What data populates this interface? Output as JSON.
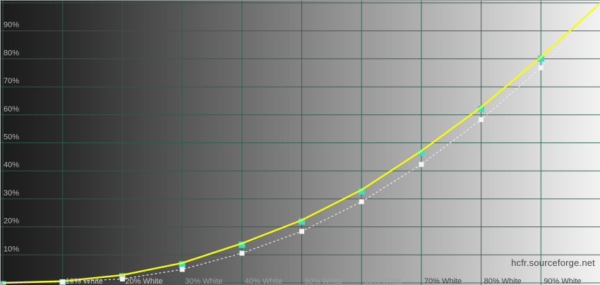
{
  "watermark": "hcfr.sourceforge.net",
  "colors": {
    "bg_left": "#1b1b1b",
    "bg_right": "#f2f2f2",
    "grid": "#2b5f4e",
    "frame": "#9a9a9a",
    "yellow_line": "#f6ff00",
    "cyan_marker": "#35dfd2",
    "white_dashed_line": "#f0f0f0",
    "white_marker": "#f4f4f4",
    "x_tick_light": "#c6c6c6",
    "x_tick_faint": "#9f9f9f",
    "x_tick_dark": "#3e3e3e",
    "y_tick": "#b6b6b6",
    "watermark_color": "#484848"
  },
  "chart_data": {
    "type": "line",
    "title": "",
    "xlabel": "",
    "ylabel": "",
    "grid": true,
    "legend": "none",
    "x_range": [
      0,
      100
    ],
    "y_range": [
      0,
      100
    ],
    "x_tick_labels": [
      "10% White",
      "20% White",
      "30% White",
      "40% White",
      "50% White",
      "60% White",
      "70% White",
      "80% White",
      "90% White"
    ],
    "y_tick_labels": [
      "10%",
      "20%",
      "30%",
      "40%",
      "50%",
      "60%",
      "70%",
      "80%",
      "90%"
    ],
    "x": [
      0,
      10,
      20,
      30,
      40,
      50,
      60,
      70,
      80,
      90,
      100
    ],
    "series": [
      {
        "name": "yellow-solid-measured-luminance",
        "style": "solid",
        "line_width": 2.4,
        "marker": "square",
        "marker_size": 9,
        "marker_offset_y": 2,
        "values": [
          0,
          0.6,
          2.8,
          7.1,
          14.1,
          22.4,
          33.2,
          47.1,
          62.7,
          80.6,
          100
        ]
      },
      {
        "name": "white-dashed-reference-luminance",
        "style": "dashed",
        "line_width": 1.2,
        "marker": "square",
        "marker_size": 7,
        "marker_offset_y": 0,
        "values": [
          0,
          0.4,
          1.4,
          4.8,
          10.6,
          18.4,
          29.0,
          42.3,
          58.3,
          76.8,
          100
        ]
      }
    ]
  }
}
